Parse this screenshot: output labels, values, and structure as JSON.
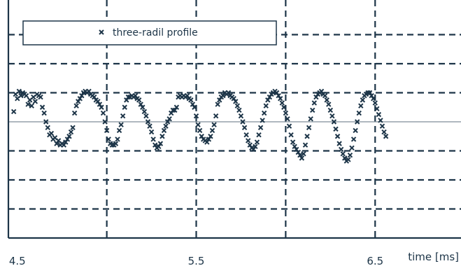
{
  "chart_data": {
    "type": "scatter",
    "title": "",
    "xlabel": "time [ms]",
    "ylabel": "",
    "xlim": [
      4.45,
      6.98
    ],
    "ylim": [
      -4.0,
      4.0
    ],
    "x_ticks": [
      4.5,
      5.5,
      6.5
    ],
    "x_tick_labels": [
      "4.5",
      "5.5",
      "6.5"
    ],
    "x_gridlines": [
      5.0,
      5.5,
      6.0,
      6.5
    ],
    "y_gridlines": [
      -3,
      -2,
      -1,
      1,
      2,
      3
    ],
    "y_reference_line": 0,
    "grid": true,
    "grid_style": "dashed",
    "legend_position": "top-left",
    "colors": {
      "marker": "#1d3548",
      "axes": "#1d3548",
      "grid": "#1d3548",
      "reference": "#7f8e99"
    },
    "series": [
      {
        "name": "three-radil profile",
        "marker": "x",
        "points": [
          [
            4.48,
            0.35
          ],
          [
            4.49,
            0.95
          ],
          [
            4.5,
            0.8
          ],
          [
            4.51,
            1.05
          ],
          [
            4.52,
            0.9
          ],
          [
            4.53,
            1.0
          ],
          [
            4.54,
            0.95
          ],
          [
            4.55,
            0.9
          ],
          [
            4.56,
            0.6
          ],
          [
            4.57,
            0.75
          ],
          [
            4.58,
            0.55
          ],
          [
            4.59,
            0.85
          ],
          [
            4.6,
            0.7
          ],
          [
            4.61,
            0.95
          ],
          [
            4.62,
            0.9
          ],
          [
            4.63,
            0.85
          ],
          [
            4.64,
            0.5
          ],
          [
            4.65,
            0.3
          ],
          [
            4.66,
            0.0
          ],
          [
            4.67,
            -0.2
          ],
          [
            4.68,
            -0.45
          ],
          [
            4.69,
            -0.4
          ],
          [
            4.7,
            -0.6
          ],
          [
            4.71,
            -0.55
          ],
          [
            4.72,
            -0.75
          ],
          [
            4.73,
            -0.65
          ],
          [
            4.74,
            -0.8
          ],
          [
            4.75,
            -0.75
          ],
          [
            4.76,
            -0.8
          ],
          [
            4.77,
            -0.7
          ],
          [
            4.78,
            -0.6
          ],
          [
            4.79,
            -0.5
          ],
          [
            4.8,
            -0.35
          ],
          [
            4.81,
            -0.2
          ],
          [
            4.82,
            0.3
          ],
          [
            4.83,
            0.55
          ],
          [
            4.84,
            0.7
          ],
          [
            4.85,
            0.8
          ],
          [
            4.86,
            0.9
          ],
          [
            4.87,
            1.0
          ],
          [
            4.88,
            1.05
          ],
          [
            4.89,
            1.0
          ],
          [
            4.9,
            1.05
          ],
          [
            4.91,
            0.95
          ],
          [
            4.92,
            0.9
          ],
          [
            4.93,
            0.85
          ],
          [
            4.94,
            0.75
          ],
          [
            4.95,
            0.7
          ],
          [
            4.96,
            0.6
          ],
          [
            4.97,
            0.5
          ],
          [
            4.98,
            0.3
          ],
          [
            4.99,
            0.0
          ],
          [
            5.0,
            -0.3
          ],
          [
            5.01,
            -0.6
          ],
          [
            5.02,
            -0.75
          ],
          [
            5.03,
            -0.8
          ],
          [
            5.04,
            -0.8
          ],
          [
            5.05,
            -0.75
          ],
          [
            5.06,
            -0.6
          ],
          [
            5.07,
            -0.3
          ],
          [
            5.08,
            -0.1
          ],
          [
            5.09,
            0.2
          ],
          [
            5.1,
            0.5
          ],
          [
            5.11,
            0.75
          ],
          [
            5.12,
            0.85
          ],
          [
            5.13,
            0.85
          ],
          [
            5.14,
            0.9
          ],
          [
            5.15,
            0.85
          ],
          [
            5.16,
            0.9
          ],
          [
            5.17,
            0.8
          ],
          [
            5.18,
            0.75
          ],
          [
            5.19,
            0.6
          ],
          [
            5.2,
            0.5
          ],
          [
            5.21,
            0.35
          ],
          [
            5.22,
            0.2
          ],
          [
            5.23,
            0.0
          ],
          [
            5.24,
            -0.15
          ],
          [
            5.25,
            -0.35
          ],
          [
            5.26,
            -0.6
          ],
          [
            5.27,
            -0.8
          ],
          [
            5.28,
            -0.9
          ],
          [
            5.29,
            -0.85
          ],
          [
            5.3,
            -0.75
          ],
          [
            5.31,
            -0.5
          ],
          [
            5.32,
            -0.3
          ],
          [
            5.33,
            -0.15
          ],
          [
            5.34,
            0.0
          ],
          [
            5.35,
            0.1
          ],
          [
            5.36,
            0.3
          ],
          [
            5.37,
            0.4
          ],
          [
            5.38,
            0.4
          ],
          [
            5.39,
            0.5
          ],
          [
            5.4,
            0.85
          ],
          [
            5.41,
            0.9
          ],
          [
            5.42,
            0.85
          ],
          [
            5.43,
            0.9
          ],
          [
            5.44,
            0.85
          ],
          [
            5.45,
            0.9
          ],
          [
            5.46,
            0.8
          ],
          [
            5.47,
            0.75
          ],
          [
            5.48,
            0.6
          ],
          [
            5.49,
            0.5
          ],
          [
            5.5,
            0.2
          ],
          [
            5.51,
            -0.1
          ],
          [
            5.52,
            -0.3
          ],
          [
            5.53,
            -0.5
          ],
          [
            5.54,
            -0.6
          ],
          [
            5.55,
            -0.65
          ],
          [
            5.56,
            -0.7
          ],
          [
            5.57,
            -0.6
          ],
          [
            5.58,
            -0.5
          ],
          [
            5.59,
            -0.3
          ],
          [
            5.6,
            -0.1
          ],
          [
            5.61,
            0.2
          ],
          [
            5.62,
            0.6
          ],
          [
            5.63,
            0.75
          ],
          [
            5.64,
            0.85
          ],
          [
            5.65,
            0.9
          ],
          [
            5.66,
            1.0
          ],
          [
            5.67,
            0.95
          ],
          [
            5.68,
            1.0
          ],
          [
            5.69,
            0.9
          ],
          [
            5.7,
            0.85
          ],
          [
            5.71,
            0.8
          ],
          [
            5.72,
            0.7
          ],
          [
            5.73,
            0.55
          ],
          [
            5.74,
            0.4
          ],
          [
            5.75,
            0.2
          ],
          [
            5.76,
            0.0
          ],
          [
            5.77,
            -0.2
          ],
          [
            5.78,
            -0.45
          ],
          [
            5.79,
            -0.65
          ],
          [
            5.8,
            -0.8
          ],
          [
            5.81,
            -0.9
          ],
          [
            5.82,
            -0.95
          ],
          [
            5.83,
            -0.85
          ],
          [
            5.84,
            -0.7
          ],
          [
            5.85,
            -0.45
          ],
          [
            5.86,
            -0.2
          ],
          [
            5.87,
            0.05
          ],
          [
            5.88,
            0.3
          ],
          [
            5.89,
            0.55
          ],
          [
            5.9,
            0.75
          ],
          [
            5.91,
            0.85
          ],
          [
            5.92,
            0.95
          ],
          [
            5.93,
            1.0
          ],
          [
            5.94,
            1.05
          ],
          [
            5.95,
            1.0
          ],
          [
            5.96,
            0.9
          ],
          [
            5.97,
            0.8
          ],
          [
            5.98,
            0.65
          ],
          [
            5.99,
            0.5
          ],
          [
            6.0,
            0.3
          ],
          [
            6.01,
            0.1
          ],
          [
            6.02,
            -0.15
          ],
          [
            6.03,
            -0.45
          ],
          [
            6.04,
            -0.7
          ],
          [
            6.05,
            -0.85
          ],
          [
            6.06,
            -0.95
          ],
          [
            6.07,
            -1.05
          ],
          [
            6.08,
            -1.15
          ],
          [
            6.09,
            -1.25
          ],
          [
            6.1,
            -1.1
          ],
          [
            6.11,
            -0.8
          ],
          [
            6.12,
            -0.5
          ],
          [
            6.13,
            -0.2
          ],
          [
            6.14,
            0.1
          ],
          [
            6.15,
            0.4
          ],
          [
            6.16,
            0.65
          ],
          [
            6.17,
            0.85
          ],
          [
            6.18,
            0.95
          ],
          [
            6.19,
            1.0
          ],
          [
            6.2,
            1.05
          ],
          [
            6.21,
            0.95
          ],
          [
            6.22,
            0.9
          ],
          [
            6.23,
            0.75
          ],
          [
            6.24,
            0.6
          ],
          [
            6.25,
            0.4
          ],
          [
            6.26,
            0.2
          ],
          [
            6.27,
            0.0
          ],
          [
            6.28,
            -0.25
          ],
          [
            6.29,
            -0.5
          ],
          [
            6.3,
            -0.75
          ],
          [
            6.31,
            -0.95
          ],
          [
            6.32,
            -1.1
          ],
          [
            6.33,
            -1.25
          ],
          [
            6.34,
            -1.35
          ],
          [
            6.35,
            -1.3
          ],
          [
            6.36,
            -1.15
          ],
          [
            6.37,
            -0.9
          ],
          [
            6.38,
            -0.6
          ],
          [
            6.39,
            -0.3
          ],
          [
            6.4,
            0.0
          ],
          [
            6.41,
            0.3
          ],
          [
            6.42,
            0.55
          ],
          [
            6.43,
            0.75
          ],
          [
            6.44,
            0.9
          ],
          [
            6.45,
            0.95
          ],
          [
            6.46,
            1.0
          ],
          [
            6.47,
            1.0
          ],
          [
            6.48,
            0.9
          ],
          [
            6.49,
            0.8
          ],
          [
            6.5,
            0.65
          ],
          [
            6.51,
            0.45
          ],
          [
            6.52,
            0.25
          ],
          [
            6.53,
            0.05
          ],
          [
            6.54,
            -0.15
          ],
          [
            6.55,
            -0.35
          ],
          [
            6.56,
            -0.5
          ]
        ]
      }
    ]
  }
}
